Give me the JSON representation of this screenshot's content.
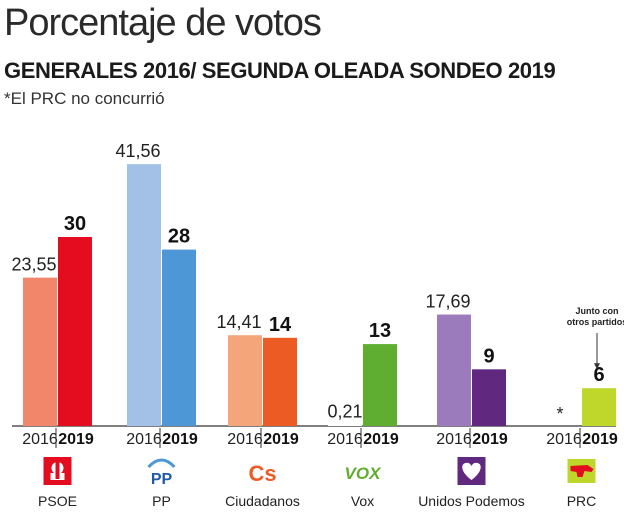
{
  "header": {
    "title": "Porcentaje de votos",
    "subtitle": "GENERALES 2016/ SEGUNDA OLEADA SONDEO 2019",
    "note": "*El PRC no concurrió"
  },
  "chart_data": {
    "type": "bar",
    "title": "Porcentaje de votos",
    "subtitle": "GENERALES 2016/ SEGUNDA OLEADA SONDEO 2019",
    "ylim": [
      0,
      45
    ],
    "grid": false,
    "categories": [
      "PSOE",
      "PP",
      "Ciudadanos",
      "Vox",
      "Unidos Podemos",
      "PRC"
    ],
    "series": [
      {
        "name": "2016",
        "values": [
          23.55,
          41.56,
          14.41,
          0.21,
          17.69,
          null
        ],
        "labels": [
          "23,55",
          "41,56",
          "14,41",
          "0,21",
          "17,69",
          "*"
        ]
      },
      {
        "name": "2019",
        "values": [
          30,
          28,
          14,
          13,
          9,
          6
        ],
        "labels": [
          "30",
          "28",
          "14",
          "13",
          "9",
          "6"
        ]
      }
    ],
    "colors": {
      "2016": [
        "#f0866a",
        "#a3c0e6",
        "#f4a57a",
        "#ffffff",
        "#9c7bbd",
        "#ffffff"
      ],
      "2019": [
        "#e30d1f",
        "#4e97d6",
        "#ec5b24",
        "#5fae2f",
        "#60297f",
        "#bfd62a"
      ]
    },
    "annotation": {
      "category": "PRC",
      "text": [
        "Junto con",
        "otros partidos"
      ]
    }
  },
  "parties": [
    {
      "name": "PSOE",
      "icon": "psoe-logo-icon"
    },
    {
      "name": "PP",
      "icon": "pp-logo-icon"
    },
    {
      "name": "Ciudadanos",
      "icon": "ciudadanos-logo-icon"
    },
    {
      "name": "Vox",
      "icon": "vox-logo-icon"
    },
    {
      "name": "Unidos Podemos",
      "icon": "podemos-heart-icon"
    },
    {
      "name": "PRC",
      "icon": "prc-logo-icon"
    }
  ],
  "logos": {
    "pp": "PP",
    "cs": "Cs",
    "vox": "VOX"
  }
}
